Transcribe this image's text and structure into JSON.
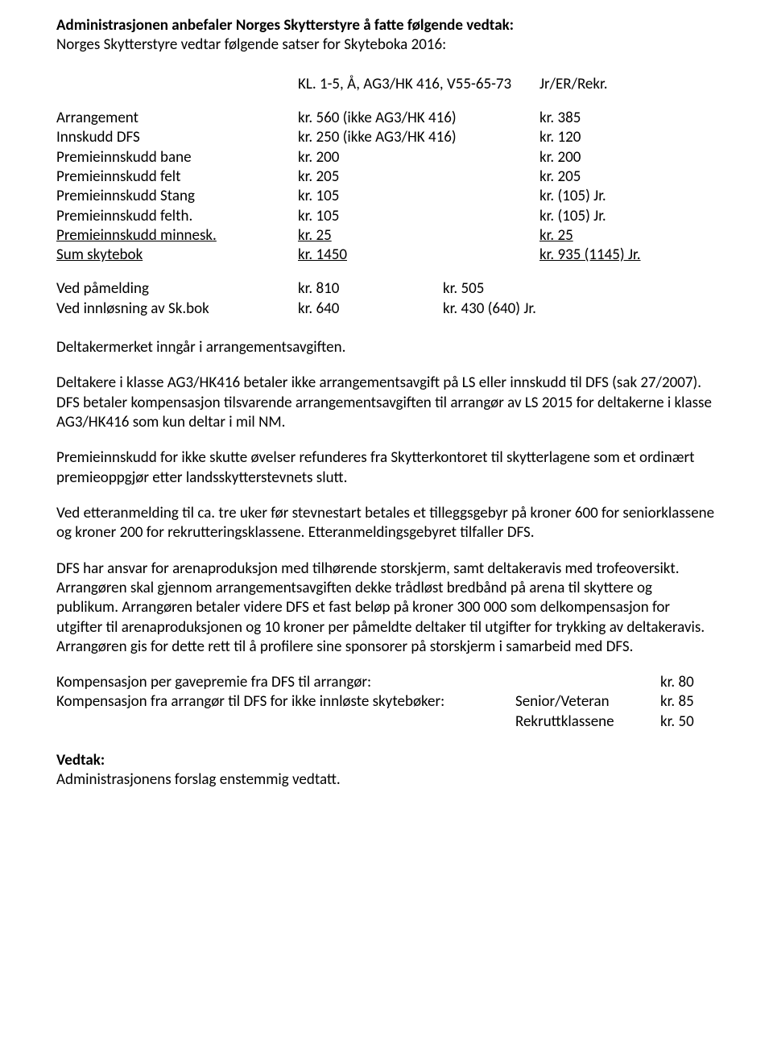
{
  "header": {
    "line_a": "Administrasjonen anbefaler Norges Skytterstyre å fatte følgende vedtak:",
    "line_b": "Norges Skytterstyre vedtar følgende satser for Skyteboka 2016:"
  },
  "kl_row": {
    "label": "KL. 1-5, Å, AG3/HK 416, V55-65-73",
    "right": "Jr/ER/Rekr."
  },
  "price_table": [
    {
      "name": "Arrangement",
      "col2": "kr. 560 (ikke AG3/HK 416)",
      "col3": "kr. 385",
      "underline": false
    },
    {
      "name": "Innskudd DFS",
      "col2": "kr. 250 (ikke AG3/HK 416)",
      "col3": "kr. 120",
      "underline": false
    },
    {
      "name": "Premieinnskudd bane",
      "col2": "kr. 200",
      "col3": "kr. 200",
      "underline": false
    },
    {
      "name": "Premieinnskudd felt",
      "col2": "kr. 205",
      "col3": "kr. 205",
      "underline": false
    },
    {
      "name": "Premieinnskudd Stang",
      "col2": "kr. 105",
      "col3": "kr. (105) Jr.",
      "underline": false
    },
    {
      "name": "Premieinnskudd felth.",
      "col2": "kr. 105",
      "col3": "kr. (105) Jr.",
      "underline": false
    },
    {
      "name": "Premieinnskudd minnesk.",
      "col2": "kr.   25",
      "col3": "kr.   25",
      "underline": true
    },
    {
      "name": "Sum skytebok",
      "col2": "kr. 1450",
      "col3": "kr. 935  (1145) Jr.",
      "underline": true
    }
  ],
  "payment_table": [
    {
      "name": "Ved påmelding",
      "col2": "kr. 810",
      "col3": "kr. 505"
    },
    {
      "name": "Ved innløsning av Sk.bok",
      "col2": "kr. 640",
      "col3": "kr. 430  (640) Jr."
    }
  ],
  "paragraphs": {
    "p1": "Deltakermerket inngår i arrangementsavgiften.",
    "p2": "Deltakere i klasse AG3/HK416 betaler ikke arrangementsavgift på LS eller innskudd til DFS (sak 27/2007). DFS betaler kompensasjon tilsvarende arrangementsavgiften til arrangør av LS 2015 for deltakerne i klasse AG3/HK416 som kun deltar i mil NM.",
    "p3": "Premieinnskudd for ikke skutte øvelser refunderes fra Skytterkontoret til skytterlagene som et ordinært premieoppgjør etter landsskytterstevnets slutt.",
    "p4": "Ved etteranmelding til ca. tre uker før stevnestart betales et tilleggsgebyr på kroner 600 for seniorklassene og kroner 200 for rekrutteringsklassene. Etteranmeldingsgebyret tilfaller DFS.",
    "p5": "DFS har ansvar for arenaproduksjon med tilhørende storskjerm, samt deltakeravis med trofeoversikt. Arrangøren skal gjennom arrangementsavgiften dekke trådløst bredbånd på arena til skyttere og publikum. Arrangøren betaler videre DFS et fast beløp på kroner 300 000 som delkompensasjon for utgifter til arenaproduksjonen og 10 kroner per påmeldte deltaker til utgifter for trykking av deltakeravis.  Arrangøren gis for dette rett til å profilere sine sponsorer på storskjerm i samarbeid med DFS."
  },
  "comp_table": [
    {
      "a": "Kompensasjon per gavepremie fra DFS til arrangør:",
      "b": "",
      "c": "kr. 80"
    },
    {
      "a": "Kompensasjon fra arrangør til DFS for ikke innløste skytebøker:",
      "b": "Senior/Veteran",
      "c": "kr. 85"
    },
    {
      "a": "",
      "b": "Rekruttklassene",
      "c": "kr. 50"
    }
  ],
  "vedtak": {
    "heading": "Vedtak:",
    "text": "Administrasjonens forslag enstemmig vedtatt."
  }
}
